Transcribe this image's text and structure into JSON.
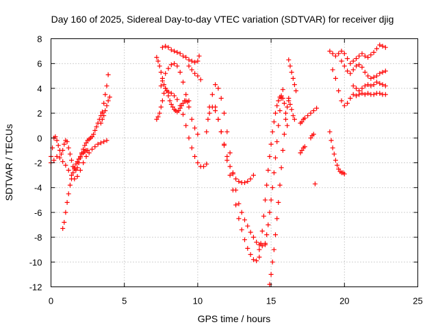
{
  "chart_data": {
    "type": "scatter",
    "title": "Day 160 of 2025, Sidereal Day-to-day VTEC variation (SDTVAR) for receiver djig",
    "xlabel": "GPS time / hours",
    "ylabel": "SDTVAR / TECUs",
    "xlim": [
      0,
      25
    ],
    "ylim": [
      -12,
      8
    ],
    "xticks": [
      "0",
      "5",
      "10",
      "15",
      "20",
      "25"
    ],
    "yticks": [
      "-12",
      "-10",
      "-8",
      "-6",
      "-4",
      "-2",
      "0",
      "2",
      "4",
      "6",
      "8"
    ],
    "grid": true,
    "marker": "+",
    "color": "#ff0000",
    "series": [
      {
        "x": [
          0.0,
          0.1,
          0.2,
          0.3,
          0.4,
          0.5,
          0.6,
          0.7,
          0.8,
          0.9,
          1.0,
          1.1,
          1.2,
          1.3,
          1.4,
          1.5,
          1.6,
          1.7,
          1.8,
          1.9,
          2.0,
          2.1,
          2.2,
          2.3,
          2.4,
          2.5,
          2.6,
          2.7,
          2.8,
          2.9,
          3.0,
          3.1,
          3.2,
          3.3,
          3.4,
          3.5
        ],
        "y": [
          -1.5,
          -0.8,
          0.0,
          0.1,
          -0.2,
          -0.6,
          -1.0,
          -1.3,
          -1.0,
          -0.5,
          -0.2,
          -0.3,
          -0.8,
          -1.3,
          -1.8,
          -2.3,
          -2.5,
          -2.6,
          -2.4,
          -2.0,
          -1.6,
          -1.2,
          -0.9,
          -0.6,
          -0.4,
          -0.2,
          -0.1,
          0.0,
          0.1,
          0.3,
          0.6,
          0.9,
          1.2,
          1.5,
          1.8,
          2.1
        ]
      },
      {
        "x": [
          0.0,
          0.2,
          0.4,
          0.6,
          0.8,
          1.0,
          1.2,
          1.4,
          1.6,
          1.8,
          2.0,
          2.2,
          2.4,
          2.6,
          2.8,
          3.0,
          3.2,
          3.4,
          3.6,
          3.8
        ],
        "y": [
          -2.0,
          -1.8,
          -1.5,
          -1.6,
          -1.9,
          -2.2,
          -2.6,
          -3.0,
          -3.3,
          -3.1,
          -2.6,
          -2.0,
          -1.5,
          -1.2,
          -0.9,
          -0.7,
          -0.5,
          -0.4,
          -0.3,
          -0.2
        ]
      },
      {
        "x": [
          0.8,
          0.9,
          1.0,
          1.1,
          1.2,
          1.3,
          1.4,
          1.5,
          1.6,
          1.7,
          1.8,
          1.9,
          2.0,
          2.1,
          2.2,
          2.3,
          2.4,
          2.5
        ],
        "y": [
          -7.3,
          -6.8,
          -6.0,
          -5.2,
          -4.5,
          -3.8,
          -3.3,
          -2.8,
          -2.4,
          -2.1,
          -1.9,
          -1.7,
          -1.5,
          -1.3,
          -1.2,
          -1.1,
          -1.0,
          -1.0
        ]
      },
      {
        "x": [
          3.4,
          3.5,
          3.6,
          3.7,
          3.8,
          3.9
        ],
        "y": [
          1.2,
          2.0,
          2.8,
          3.5,
          4.2,
          5.1
        ]
      },
      {
        "x": [
          3.5,
          3.6,
          3.7,
          3.8,
          3.9,
          4.0
        ],
        "y": [
          1.5,
          1.8,
          2.2,
          2.6,
          3.0,
          3.3
        ]
      },
      {
        "x": [
          7.2,
          7.3,
          7.4,
          7.5,
          7.6,
          7.7,
          7.8,
          7.9,
          8.0,
          8.1,
          8.2,
          8.3,
          8.4,
          8.5,
          8.6,
          8.7,
          8.8,
          8.9,
          9.0,
          9.1,
          9.2,
          9.3,
          9.4
        ],
        "y": [
          1.5,
          1.7,
          2.0,
          2.5,
          3.0,
          3.6,
          4.0,
          3.8,
          3.4,
          3.0,
          2.7,
          2.5,
          2.3,
          2.2,
          2.1,
          2.2,
          2.4,
          2.6,
          2.8,
          3.0,
          3.0,
          2.9,
          3.0
        ]
      },
      {
        "x": [
          7.2,
          7.3,
          7.4,
          7.5,
          7.6,
          7.7,
          7.8,
          7.9,
          8.0,
          8.2,
          8.4,
          8.6,
          8.8,
          9.0,
          9.2,
          9.4,
          9.6,
          9.8,
          10.0,
          10.2,
          10.4,
          10.6
        ],
        "y": [
          6.5,
          6.2,
          5.8,
          5.3,
          4.8,
          4.3,
          4.0,
          3.8,
          3.7,
          3.6,
          3.4,
          3.1,
          2.6,
          1.9,
          1.0,
          0.0,
          -0.8,
          -1.5,
          -2.0,
          -2.3,
          -2.3,
          -2.1
        ]
      },
      {
        "x": [
          7.5,
          7.6,
          7.8,
          8.0,
          8.2,
          8.4,
          8.6,
          8.8,
          9.0,
          9.2,
          9.4,
          9.6,
          9.8,
          10.0
        ],
        "y": [
          4.2,
          4.6,
          5.2,
          5.6,
          5.9,
          6.0,
          5.8,
          5.3,
          4.5,
          3.5,
          2.5,
          1.5,
          0.8,
          0.3
        ]
      },
      {
        "x": [
          7.6,
          7.8,
          8.0,
          8.2,
          8.4,
          8.6,
          8.8,
          9.0,
          9.2,
          9.4,
          9.6,
          9.8,
          10.0,
          10.1
        ],
        "y": [
          7.3,
          7.4,
          7.3,
          7.1,
          7.0,
          6.9,
          6.8,
          6.6,
          6.5,
          6.3,
          6.2,
          6.1,
          6.2,
          6.6
        ]
      },
      {
        "x": [
          9.4,
          9.6,
          9.8,
          10.0,
          10.2
        ],
        "y": [
          5.8,
          5.5,
          5.2,
          5.0,
          4.7
        ]
      },
      {
        "x": [
          10.6,
          10.7,
          10.8,
          11.0,
          11.2,
          11.4,
          11.6,
          11.8,
          12.0,
          12.2,
          12.4,
          12.6,
          12.8,
          13.0,
          13.2,
          13.4,
          13.6,
          13.8,
          14.0,
          14.2,
          14.4,
          14.6
        ],
        "y": [
          0.5,
          1.5,
          2.5,
          3.5,
          4.3,
          4.0,
          3.2,
          2.0,
          0.5,
          -1.2,
          -2.8,
          -4.2,
          -5.3,
          -6.0,
          -6.6,
          -7.1,
          -7.6,
          -8.0,
          -8.4,
          -8.6,
          -8.7,
          -8.6
        ]
      },
      {
        "x": [
          10.8,
          11.0,
          11.2,
          11.4,
          11.6,
          11.8,
          12.0,
          12.2,
          12.4,
          12.6,
          12.8,
          13.0,
          13.2,
          13.4,
          13.6,
          13.8
        ],
        "y": [
          2.0,
          2.5,
          2.2,
          1.5,
          0.5,
          -0.5,
          -1.5,
          -2.3,
          -2.9,
          -3.3,
          -3.5,
          -3.6,
          -3.6,
          -3.5,
          -3.3,
          -3.0
        ]
      },
      {
        "x": [
          11.2,
          11.4,
          11.6,
          11.8,
          12.0,
          12.2,
          12.4,
          12.6,
          12.8,
          13.0,
          13.2,
          13.4,
          13.6,
          13.8,
          14.0,
          14.2
        ],
        "y": [
          2.5,
          1.5,
          0.5,
          -0.6,
          -1.8,
          -3.0,
          -4.2,
          -5.4,
          -6.5,
          -7.4,
          -8.2,
          -8.9,
          -9.4,
          -9.8,
          -9.9,
          -9.6
        ]
      },
      {
        "x": [
          14.2,
          14.3,
          14.4,
          14.5,
          14.6,
          14.7,
          14.8,
          14.9,
          15.0,
          15.1,
          15.2,
          15.3,
          15.4,
          15.5,
          15.6,
          15.7,
          15.8,
          15.9,
          16.0,
          16.1
        ],
        "y": [
          -9.0,
          -8.5,
          -7.5,
          -6.3,
          -5.0,
          -3.8,
          -2.6,
          -1.5,
          -0.5,
          0.5,
          1.3,
          2.0,
          2.6,
          3.0,
          3.3,
          3.4,
          3.2,
          2.8,
          2.0,
          1.0
        ]
      },
      {
        "x": [
          14.9,
          15.0,
          15.1,
          15.2,
          15.3,
          15.4,
          15.5,
          15.6,
          15.7,
          15.8,
          15.9,
          16.0,
          16.1,
          16.2
        ],
        "y": [
          -11.8,
          -11.0,
          -10.0,
          -9.0,
          -7.8,
          -6.5,
          -5.2,
          -3.8,
          -2.4,
          -1.0,
          0.3,
          1.5,
          2.5,
          3.2
        ]
      },
      {
        "x": [
          14.6,
          14.7,
          14.8,
          14.9,
          15.0,
          15.1,
          15.2,
          15.3,
          15.4,
          15.5,
          15.6,
          15.7,
          15.8
        ],
        "y": [
          -8.5,
          -7.8,
          -7.0,
          -6.0,
          -5.0,
          -4.0,
          -2.8,
          -1.6,
          -0.3,
          1.0,
          2.2,
          3.2,
          3.9
        ]
      },
      {
        "x": [
          16.2,
          16.3,
          16.4,
          16.5,
          16.6,
          16.7
        ],
        "y": [
          6.3,
          5.8,
          5.3,
          4.8,
          4.3,
          3.8
        ]
      },
      {
        "x": [
          16.2,
          16.3,
          16.4,
          16.5,
          16.6
        ],
        "y": [
          3.0,
          2.7,
          2.3,
          1.8,
          1.5
        ]
      },
      {
        "x": [
          17.0,
          17.1,
          17.2,
          17.3,
          17.5,
          17.7,
          17.9,
          18.1
        ],
        "y": [
          1.2,
          1.3,
          1.5,
          1.6,
          1.8,
          2.0,
          2.2,
          2.4
        ]
      },
      {
        "x": [
          17.0,
          17.1,
          17.2,
          17.3
        ],
        "y": [
          -1.2,
          -1.0,
          -0.8,
          -0.7
        ]
      },
      {
        "x": [
          17.7,
          17.8,
          17.9
        ],
        "y": [
          0.0,
          0.2,
          0.3
        ]
      },
      {
        "x": [
          18.0
        ],
        "y": [
          -3.7
        ]
      },
      {
        "x": [
          19.0,
          19.1,
          19.2,
          19.3,
          19.4,
          19.5,
          19.6,
          19.7,
          19.8,
          19.9,
          20.0
        ],
        "y": [
          0.5,
          -0.2,
          -0.8,
          -1.3,
          -1.8,
          -2.2,
          -2.5,
          -2.7,
          -2.8,
          -2.8,
          -2.9
        ]
      },
      {
        "x": [
          19.0,
          19.2,
          19.4,
          19.6,
          19.8,
          20.0,
          20.2,
          20.4,
          20.6,
          20.8,
          21.0,
          21.2,
          21.4,
          21.6,
          21.8,
          22.0,
          22.2,
          22.4,
          22.6,
          22.8
        ],
        "y": [
          7.0,
          6.8,
          6.6,
          6.8,
          7.0,
          6.8,
          6.4,
          6.0,
          6.2,
          6.4,
          6.6,
          6.8,
          6.6,
          6.5,
          6.7,
          6.9,
          7.2,
          7.5,
          7.4,
          7.3
        ]
      },
      {
        "x": [
          19.2,
          19.4,
          19.6,
          19.8,
          20.0,
          20.2,
          20.4,
          20.6,
          20.8,
          21.0,
          21.2,
          21.4,
          21.6,
          21.8,
          22.0,
          22.2,
          22.4,
          22.6,
          22.8
        ],
        "y": [
          5.5,
          4.8,
          3.8,
          3.0,
          2.6,
          2.8,
          3.2,
          3.5,
          3.4,
          3.5,
          3.6,
          3.5,
          3.6,
          3.5,
          3.5,
          3.6,
          3.6,
          3.5,
          3.5
        ]
      },
      {
        "x": [
          19.8,
          20.0,
          20.2,
          20.4,
          20.6,
          20.8,
          21.0,
          21.2,
          21.4,
          21.6,
          21.8,
          22.0,
          22.2,
          22.4,
          22.6,
          22.8
        ],
        "y": [
          6.2,
          5.8,
          5.4,
          5.2,
          5.5,
          5.8,
          5.9,
          5.7,
          5.3,
          5.0,
          4.8,
          4.9,
          5.0,
          5.2,
          5.3,
          5.4
        ]
      },
      {
        "x": [
          20.6,
          20.8,
          21.0,
          21.2,
          21.4,
          21.6,
          21.8,
          22.0,
          22.2,
          22.4,
          22.6,
          22.8
        ],
        "y": [
          4.2,
          4.0,
          3.8,
          4.0,
          4.2,
          4.3,
          4.2,
          4.3,
          4.5,
          4.4,
          4.3,
          4.2
        ]
      }
    ]
  }
}
